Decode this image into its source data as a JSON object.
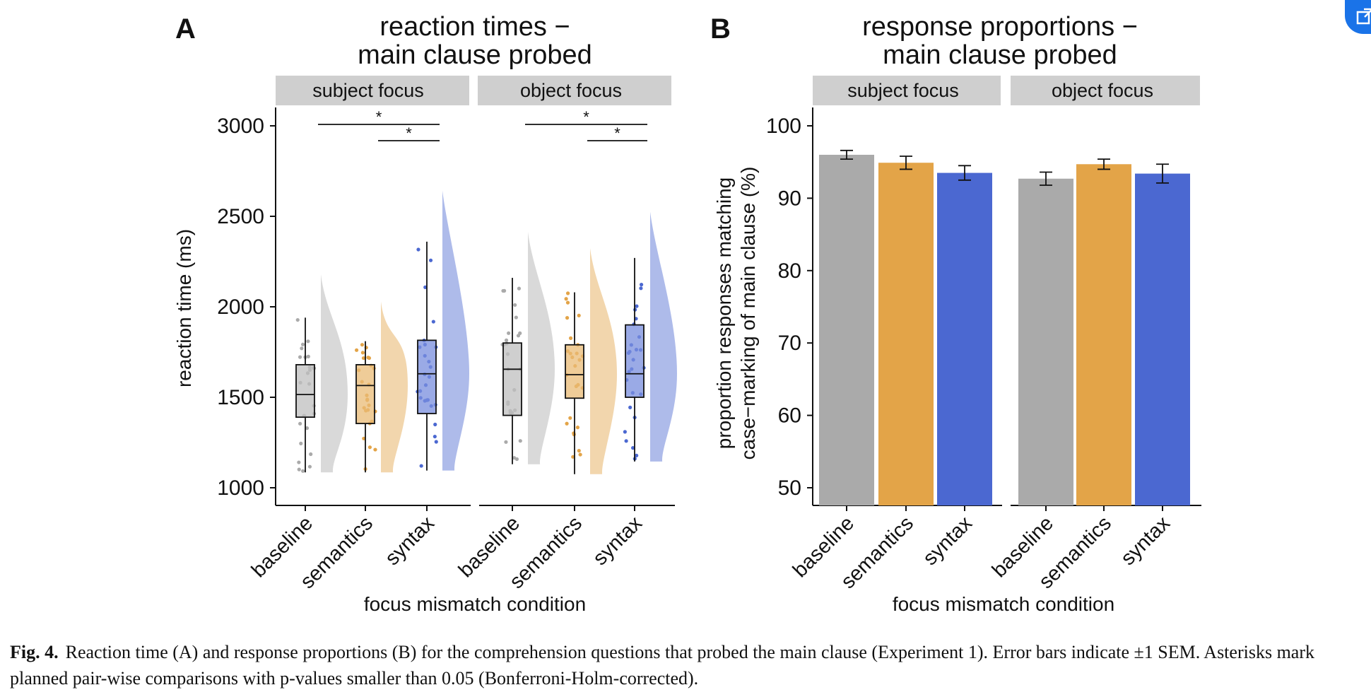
{
  "colors": {
    "baseline": "#aaaaaa",
    "semantics": "#e3a448",
    "syntax": "#4b68d1",
    "strip": "#cfcfcf",
    "accent": "#1a73e8"
  },
  "corner_button": {
    "icon": "open-external-icon"
  },
  "caption": {
    "label": "Fig. 4.",
    "text": "Reaction time (A) and response proportions (B) for the comprehension questions that probed the main clause (Experiment 1). Error bars indicate ±1 SEM. Asterisks mark planned pair-wise comparisons with p-values smaller than 0.05 (Bonferroni-Holm-corrected)."
  },
  "chart_data": [
    {
      "panel": "A",
      "type": "boxplot",
      "title_line1": "reaction times −",
      "title_line2": "main clause probed",
      "xlabel": "focus mismatch condition",
      "ylabel": "reaction time (ms)",
      "ylim": [
        1000,
        3000
      ],
      "yticks": [
        1000,
        1500,
        2000,
        2500,
        3000
      ],
      "categories": [
        "baseline",
        "semantics",
        "syntax"
      ],
      "facets": [
        {
          "name": "subject focus",
          "boxes": [
            {
              "condition": "baseline",
              "min": 1085,
              "q1": 1390,
              "median": 1515,
              "q3": 1680,
              "max": 1940
            },
            {
              "condition": "semantics",
              "min": 1085,
              "q1": 1355,
              "median": 1565,
              "q3": 1680,
              "max": 1810
            },
            {
              "condition": "syntax",
              "min": 1095,
              "q1": 1410,
              "median": 1630,
              "q3": 1815,
              "max": 2360
            }
          ],
          "significance": [
            {
              "from": "baseline",
              "to": "syntax",
              "label": "*"
            },
            {
              "from": "semantics",
              "to": "syntax",
              "label": "*"
            }
          ]
        },
        {
          "name": "object focus",
          "boxes": [
            {
              "condition": "baseline",
              "min": 1130,
              "q1": 1400,
              "median": 1655,
              "q3": 1800,
              "max": 2160
            },
            {
              "condition": "semantics",
              "min": 1075,
              "q1": 1495,
              "median": 1625,
              "q3": 1790,
              "max": 2080
            },
            {
              "condition": "syntax",
              "min": 1145,
              "q1": 1500,
              "median": 1630,
              "q3": 1900,
              "max": 2270
            }
          ],
          "significance": [
            {
              "from": "baseline",
              "to": "syntax",
              "label": "*"
            },
            {
              "from": "semantics",
              "to": "syntax",
              "label": "*"
            }
          ]
        }
      ]
    },
    {
      "panel": "B",
      "type": "bar",
      "title_line1": "response proportions −",
      "title_line2": "main clause probed",
      "xlabel": "focus mismatch condition",
      "ylabel_line1": "proportion responses matching",
      "ylabel_line2": "case−marking of main clause (%)",
      "ylim": [
        47.5,
        102.5
      ],
      "yticks": [
        50,
        60,
        70,
        80,
        90,
        100
      ],
      "categories": [
        "baseline",
        "semantics",
        "syntax"
      ],
      "facets": [
        {
          "name": "subject focus",
          "series": [
            {
              "condition": "baseline",
              "value": 96.0,
              "sem": 0.6
            },
            {
              "condition": "semantics",
              "value": 94.9,
              "sem": 0.9
            },
            {
              "condition": "syntax",
              "value": 93.5,
              "sem": 1.0
            }
          ]
        },
        {
          "name": "object focus",
          "series": [
            {
              "condition": "baseline",
              "value": 92.7,
              "sem": 0.9
            },
            {
              "condition": "semantics",
              "value": 94.7,
              "sem": 0.7
            },
            {
              "condition": "syntax",
              "value": 93.4,
              "sem": 1.3
            }
          ]
        }
      ]
    }
  ]
}
